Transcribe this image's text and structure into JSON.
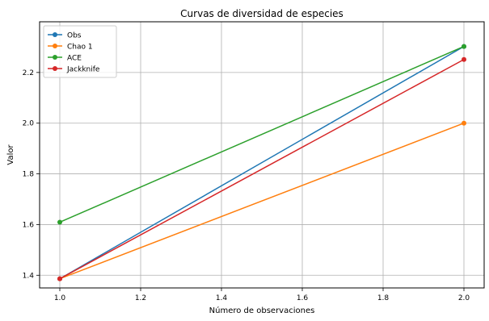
{
  "chart_data": {
    "type": "line",
    "title": "Curvas de diversidad de especies",
    "xlabel": "Número de observaciones",
    "ylabel": "Valor",
    "x": [
      1.0,
      2.0
    ],
    "xlim": [
      0.95,
      2.05
    ],
    "ylim": [
      1.35,
      2.4
    ],
    "xticks": [
      1.0,
      1.2,
      1.4,
      1.6,
      1.8,
      2.0
    ],
    "yticks": [
      1.4,
      1.6,
      1.8,
      2.0,
      2.2
    ],
    "grid": true,
    "legend_position": "top-left",
    "series": [
      {
        "name": "Obs",
        "color": "#1f77b4",
        "values": [
          1.3863,
          2.3026
        ]
      },
      {
        "name": "Chao 1",
        "color": "#ff7f0e",
        "values": [
          1.3863,
          2.0
        ]
      },
      {
        "name": "ACE",
        "color": "#2ca02c",
        "values": [
          1.6094,
          2.3026
        ]
      },
      {
        "name": "Jackknife",
        "color": "#d62728",
        "values": [
          1.3863,
          2.2513
        ]
      }
    ]
  }
}
